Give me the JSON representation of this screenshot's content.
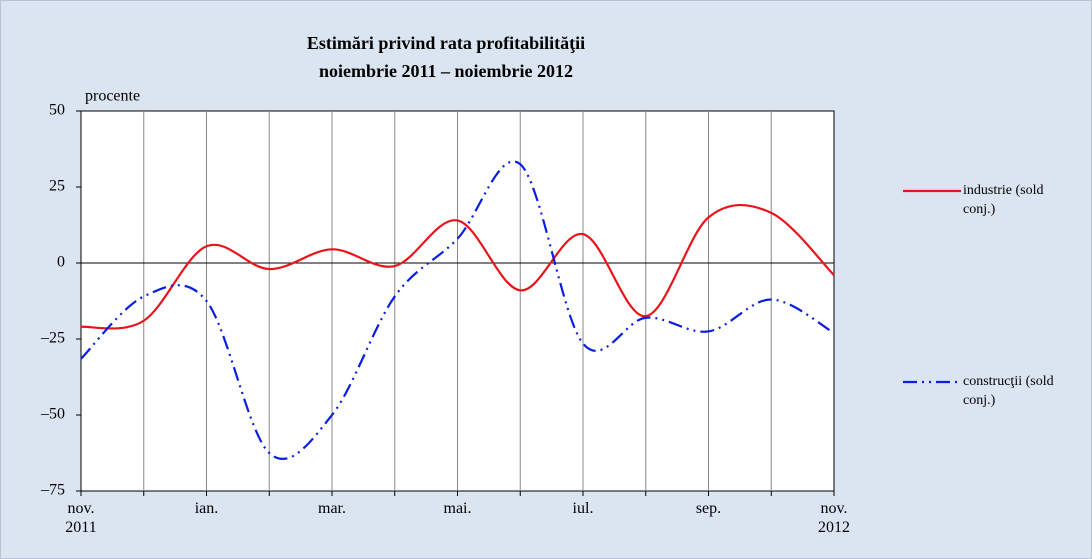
{
  "chart_data": {
    "type": "line",
    "title": "Estimări privind rata profitabilităţii",
    "subtitle": "noiembrie 2011 – noiembrie 2012",
    "y_label": "procente",
    "categories": [
      "nov. 2011",
      null,
      "ian.",
      null,
      "mar.",
      null,
      "mai.",
      null,
      "iul.",
      null,
      "sep.",
      null,
      "nov. 2012"
    ],
    "series": [
      {
        "name": "industrie (sold conj.)",
        "color": "#e8141b",
        "dash": "solid",
        "values": [
          -21,
          -19,
          5.5,
          -2,
          4.5,
          -1,
          14,
          -9,
          9.5,
          -17.5,
          15,
          16.5,
          -4
        ]
      },
      {
        "name": "construcţii (sold conj.)",
        "color": "#0a1ee0",
        "dash": "dash-dot-dot",
        "values": [
          -31.5,
          -11,
          -12.5,
          -62.5,
          -50,
          -11,
          8,
          32.5,
          -26.5,
          -18,
          -22.5,
          -12,
          -23
        ]
      }
    ],
    "ylim": [
      -75,
      50
    ],
    "yticks": [
      50,
      25,
      0,
      {
        "value": -25,
        "label": "–25"
      },
      {
        "value": -50,
        "label": "–50"
      },
      {
        "value": -75,
        "label": "–75"
      }
    ],
    "grid": "vertical"
  }
}
